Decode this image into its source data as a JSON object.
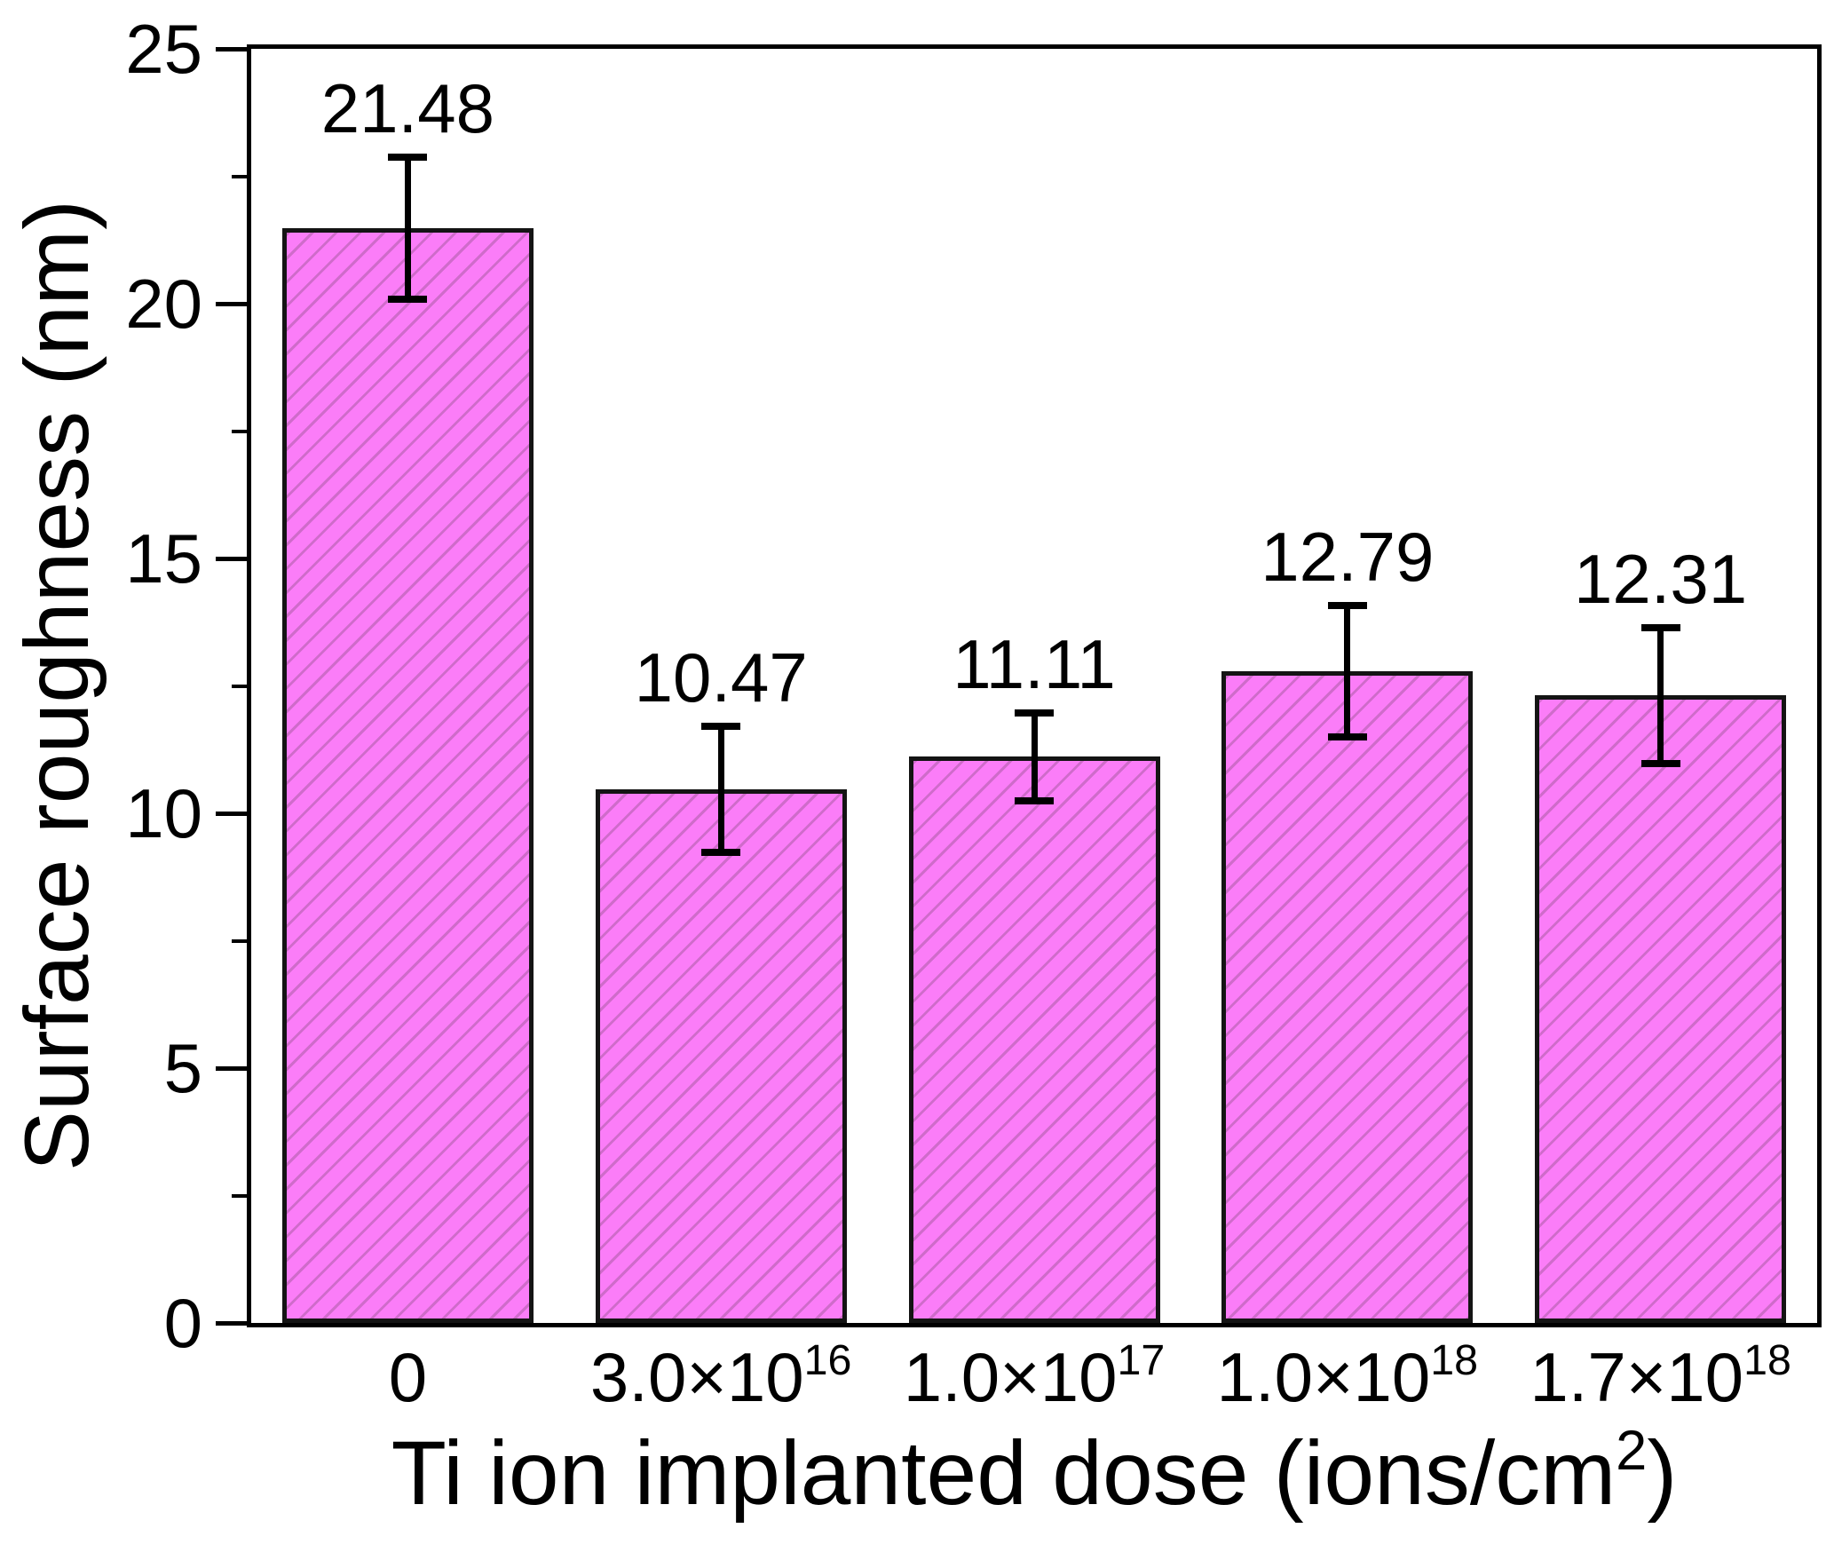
{
  "figure": {
    "background": "#ffffff"
  },
  "chart_data": {
    "type": "bar",
    "title": "",
    "xlabel": "Ti ion implanted dose (ions/cm²)",
    "xlabel_parts": {
      "pre": "Ti ion implanted dose (ions/cm",
      "sup": "2",
      "post": ")"
    },
    "ylabel": "Surface roughness (nm)",
    "categories": [
      "0",
      "3.0×10¹⁶",
      "1.0×10¹⁷",
      "1.0×10¹⁸",
      "1.7×10¹⁸"
    ],
    "categories_rich": [
      {
        "base": "0",
        "exp": ""
      },
      {
        "base": "3.0×10",
        "exp": "16"
      },
      {
        "base": "1.0×10",
        "exp": "17"
      },
      {
        "base": "1.0×10",
        "exp": "18"
      },
      {
        "base": "1.7×10",
        "exp": "18"
      }
    ],
    "values": [
      21.48,
      10.47,
      11.11,
      12.79,
      12.31
    ],
    "value_labels": [
      "21.48",
      "10.47",
      "11.11",
      "12.79",
      "12.31"
    ],
    "errors": [
      1.4,
      1.24,
      0.86,
      1.29,
      1.33
    ],
    "ylim": [
      0,
      25
    ],
    "yticks": [
      0,
      5,
      10,
      15,
      20,
      25
    ],
    "ytick_minor_step": 2.5,
    "grid": false,
    "legend": null,
    "colors": {
      "bar_fill": "#FB7DF8",
      "bar_hatch": "#CF6BCA",
      "bar_edge": "#141414",
      "axis": "#000000",
      "error_bar": "#000000",
      "text": "#000000"
    },
    "bar_hatch_style": "thin diagonal lines bottom-left to top-right"
  }
}
